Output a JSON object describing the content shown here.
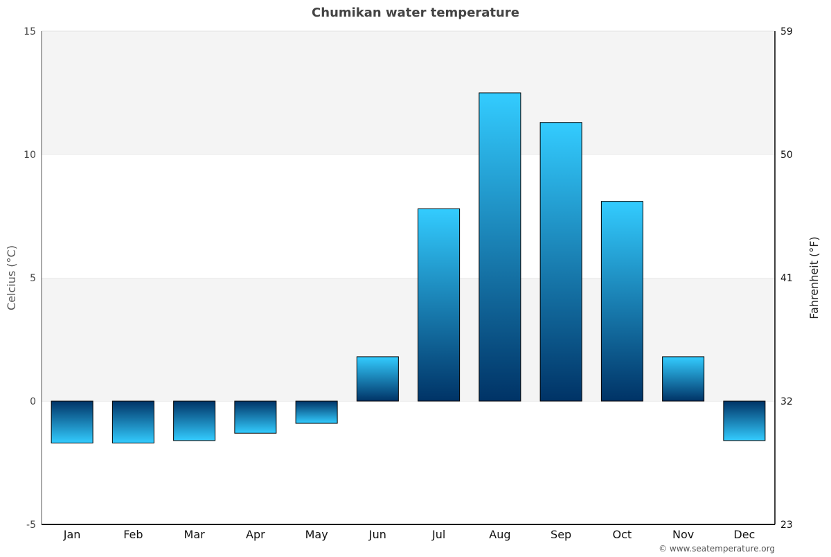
{
  "chart_data": {
    "type": "bar",
    "title": "Chumikan water temperature",
    "ylabel": "Celcius (°C)",
    "y2label": "Fahrenheit (°F)",
    "categories": [
      "Jan",
      "Feb",
      "Mar",
      "Apr",
      "May",
      "Jun",
      "Jul",
      "Aug",
      "Sep",
      "Oct",
      "Nov",
      "Dec"
    ],
    "values": [
      -1.7,
      -1.7,
      -1.6,
      -1.3,
      -0.9,
      1.8,
      7.8,
      12.5,
      11.3,
      8.1,
      1.8,
      -1.6
    ],
    "ylim": [
      -5,
      15
    ],
    "yticks": [
      -5,
      0,
      5,
      10,
      15
    ],
    "y2ticks": [
      23,
      32,
      41,
      50,
      59
    ],
    "grid": true,
    "legend": "none",
    "colors": {
      "bar_light": "#33ccff",
      "bar_dark": "#003366",
      "band": "#f4f4f4",
      "title": "#444444"
    }
  },
  "footer": {
    "credit": "© www.seatemperature.org"
  }
}
